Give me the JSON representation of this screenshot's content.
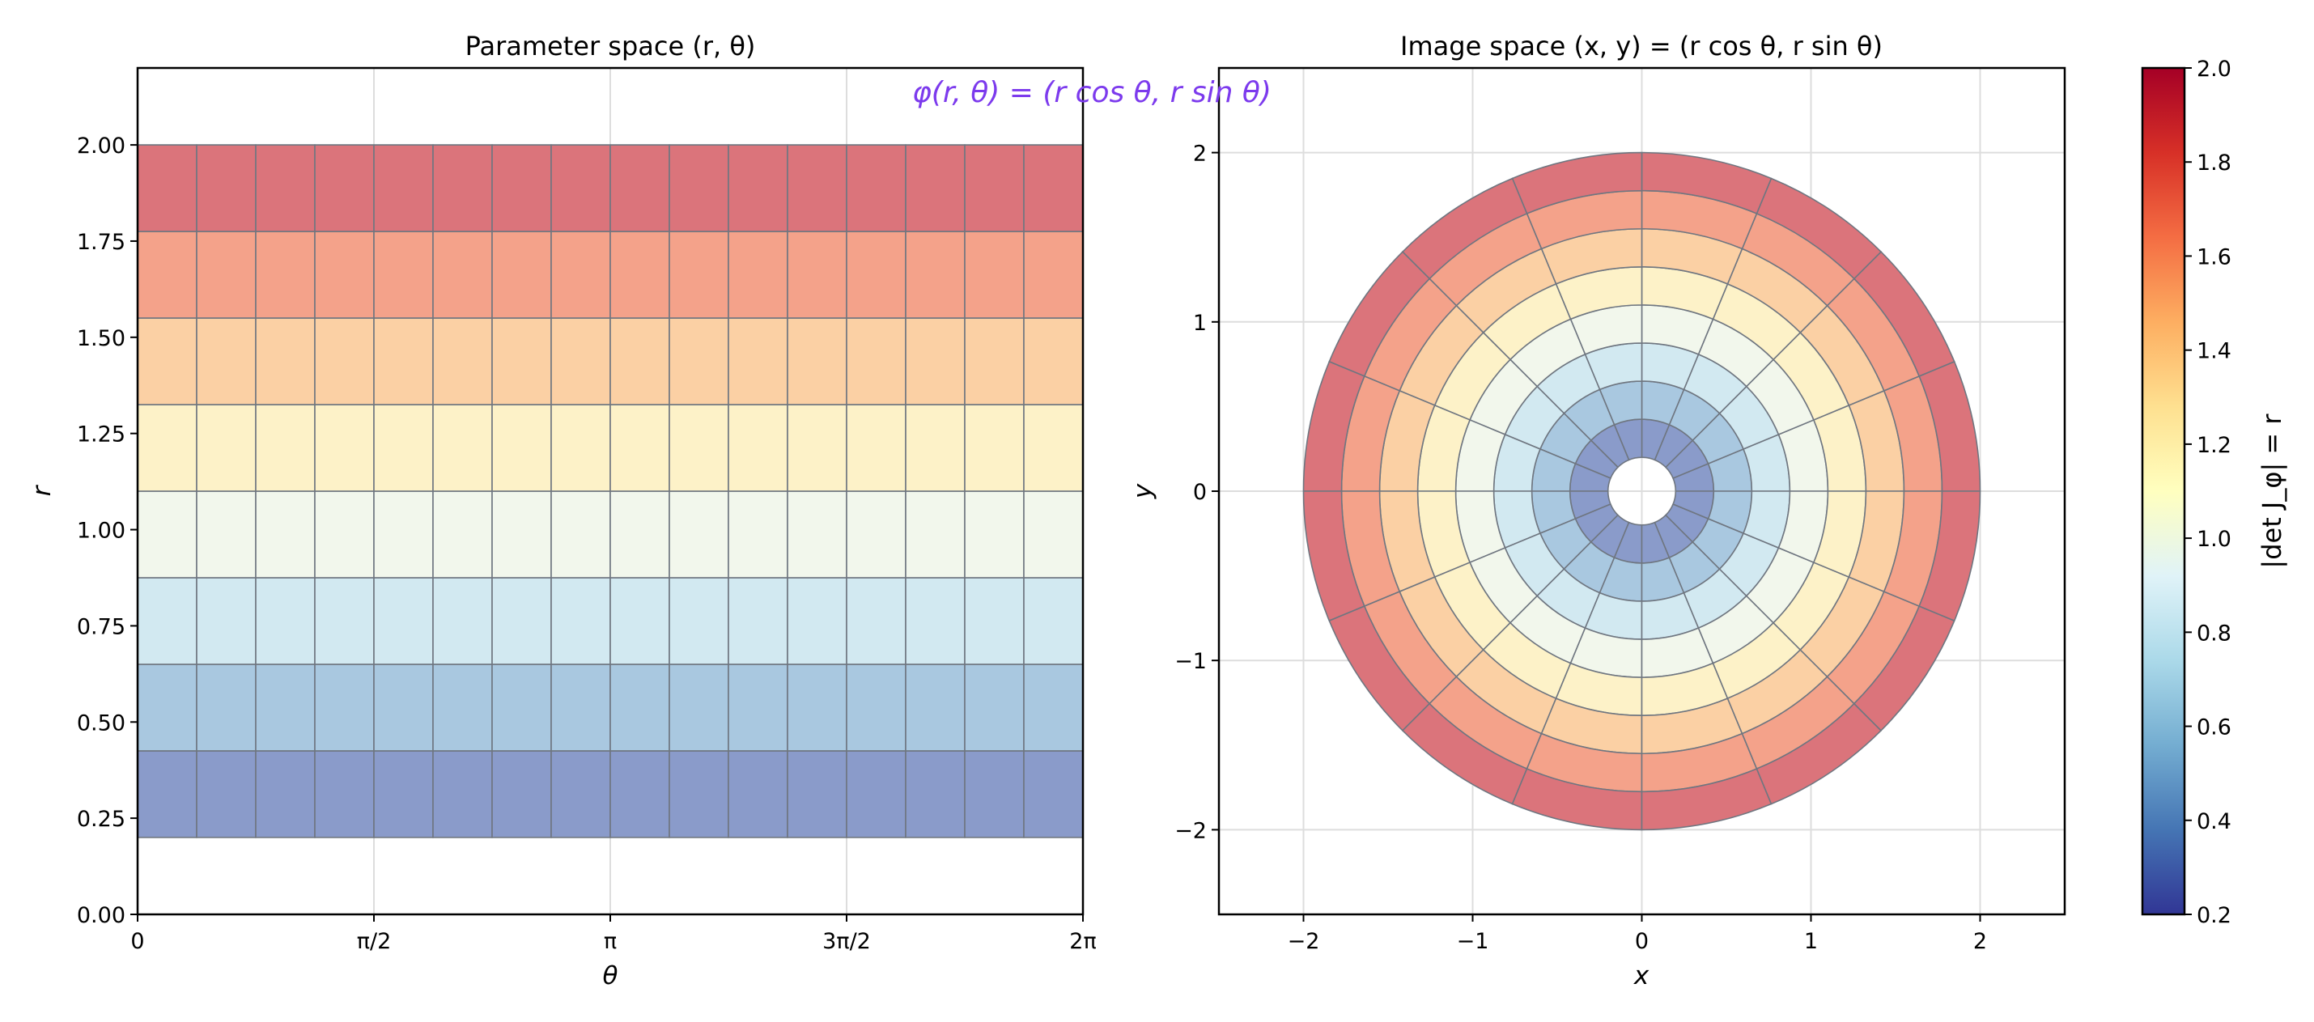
{
  "chart_data": [
    {
      "type": "heatmap",
      "title": "Parameter space (r, θ)",
      "xlabel": "θ",
      "ylabel": "r",
      "xlim": [
        0,
        6.2832
      ],
      "ylim": [
        0,
        2.2
      ],
      "xticks": [
        "0",
        "π/2",
        "π",
        "3π/2",
        "2π"
      ],
      "yticks": [
        "0.00",
        "0.25",
        "0.50",
        "0.75",
        "1.00",
        "1.25",
        "1.50",
        "1.75",
        "2.00"
      ],
      "grid": true,
      "r_range": [
        0.2,
        2.0
      ],
      "r_bands": 8,
      "theta_segments": 16,
      "value": "r"
    },
    {
      "type": "heatmap",
      "title": "Image space (x, y) = (r cos θ, r sin θ)",
      "xlabel": "x",
      "ylabel": "y",
      "xlim": [
        -2.5,
        2.5
      ],
      "ylim": [
        -2.5,
        2.5
      ],
      "xticks": [
        "−2",
        "−1",
        "0",
        "1",
        "2"
      ],
      "yticks": [
        "−2",
        "−1",
        "0",
        "1",
        "2"
      ],
      "grid": true,
      "r_range": [
        0.2,
        2.0
      ],
      "r_bands": 8,
      "theta_segments": 16,
      "value": "r"
    }
  ],
  "annotation": "φ(r, θ) = (r cos θ,  r sin θ)",
  "colorbar": {
    "label": "|det J_φ| = r",
    "range": [
      0.2,
      2.0
    ],
    "ticks": [
      "0.2",
      "0.4",
      "0.6",
      "0.8",
      "1.0",
      "1.2",
      "1.4",
      "1.6",
      "1.8",
      "2.0"
    ],
    "colormap": "RdYlBu_r"
  },
  "colors": {
    "bands": [
      "#8a9bca",
      "#a9c8e0",
      "#d2e9f1",
      "#f2f7ec",
      "#fdf2c8",
      "#fbd0a4",
      "#f4a28a",
      "#db747b"
    ],
    "edge": "#6f7680",
    "annotation": "#7c3aed",
    "colormap_stops": [
      "#313695",
      "#4575b4",
      "#74add1",
      "#abd9e9",
      "#e0f3f8",
      "#ffffbf",
      "#fee090",
      "#fdae61",
      "#f46d43",
      "#d73027",
      "#a50026"
    ]
  }
}
